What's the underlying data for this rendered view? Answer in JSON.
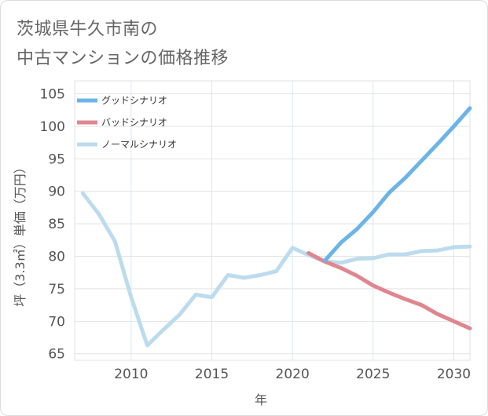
{
  "title": {
    "line1": "茨城県牛久市南の",
    "line2": "中古マンションの価格推移"
  },
  "chart_data": {
    "type": "line",
    "xlabel": "年",
    "ylabel": "坪（3.3㎡）単価（万円）",
    "xlim": [
      2006.5,
      2031
    ],
    "ylim": [
      64,
      107
    ],
    "x_ticks": [
      2010,
      2015,
      2020,
      2025,
      2030
    ],
    "y_ticks": [
      65,
      70,
      75,
      80,
      85,
      90,
      95,
      100,
      105
    ],
    "grid": true,
    "legend_position": "top-left",
    "series": [
      {
        "name": "グッドシナリオ",
        "color": "#6cb4e8",
        "x": [
          2022,
          2023,
          2024,
          2025,
          2026,
          2027,
          2028,
          2029,
          2030,
          2031
        ],
        "y": [
          79.3,
          82.1,
          84.2,
          86.8,
          89.8,
          92.1,
          94.7,
          97.3,
          100.0,
          102.8
        ]
      },
      {
        "name": "バッドシナリオ",
        "color": "#e0868f",
        "x": [
          2021,
          2022,
          2023,
          2024,
          2025,
          2026,
          2027,
          2028,
          2029,
          2030,
          2031
        ],
        "y": [
          80.5,
          79.2,
          78.2,
          77.0,
          75.5,
          74.4,
          73.4,
          72.5,
          71.1,
          70.0,
          68.9
        ]
      },
      {
        "name": "ノーマルシナリオ",
        "color": "#bcdcee",
        "x": [
          2007,
          2008,
          2009,
          2010,
          2011,
          2012,
          2013,
          2014,
          2015,
          2016,
          2017,
          2018,
          2019,
          2020,
          2021,
          2022,
          2023,
          2024,
          2025,
          2026,
          2027,
          2028,
          2029,
          2030,
          2031
        ],
        "y": [
          89.7,
          86.5,
          82.3,
          73.7,
          66.3,
          68.7,
          71.0,
          74.1,
          73.7,
          77.1,
          76.7,
          77.1,
          77.7,
          81.3,
          80.2,
          79.2,
          79.0,
          79.6,
          79.7,
          80.3,
          80.3,
          80.8,
          80.9,
          81.4,
          81.5
        ]
      }
    ]
  }
}
